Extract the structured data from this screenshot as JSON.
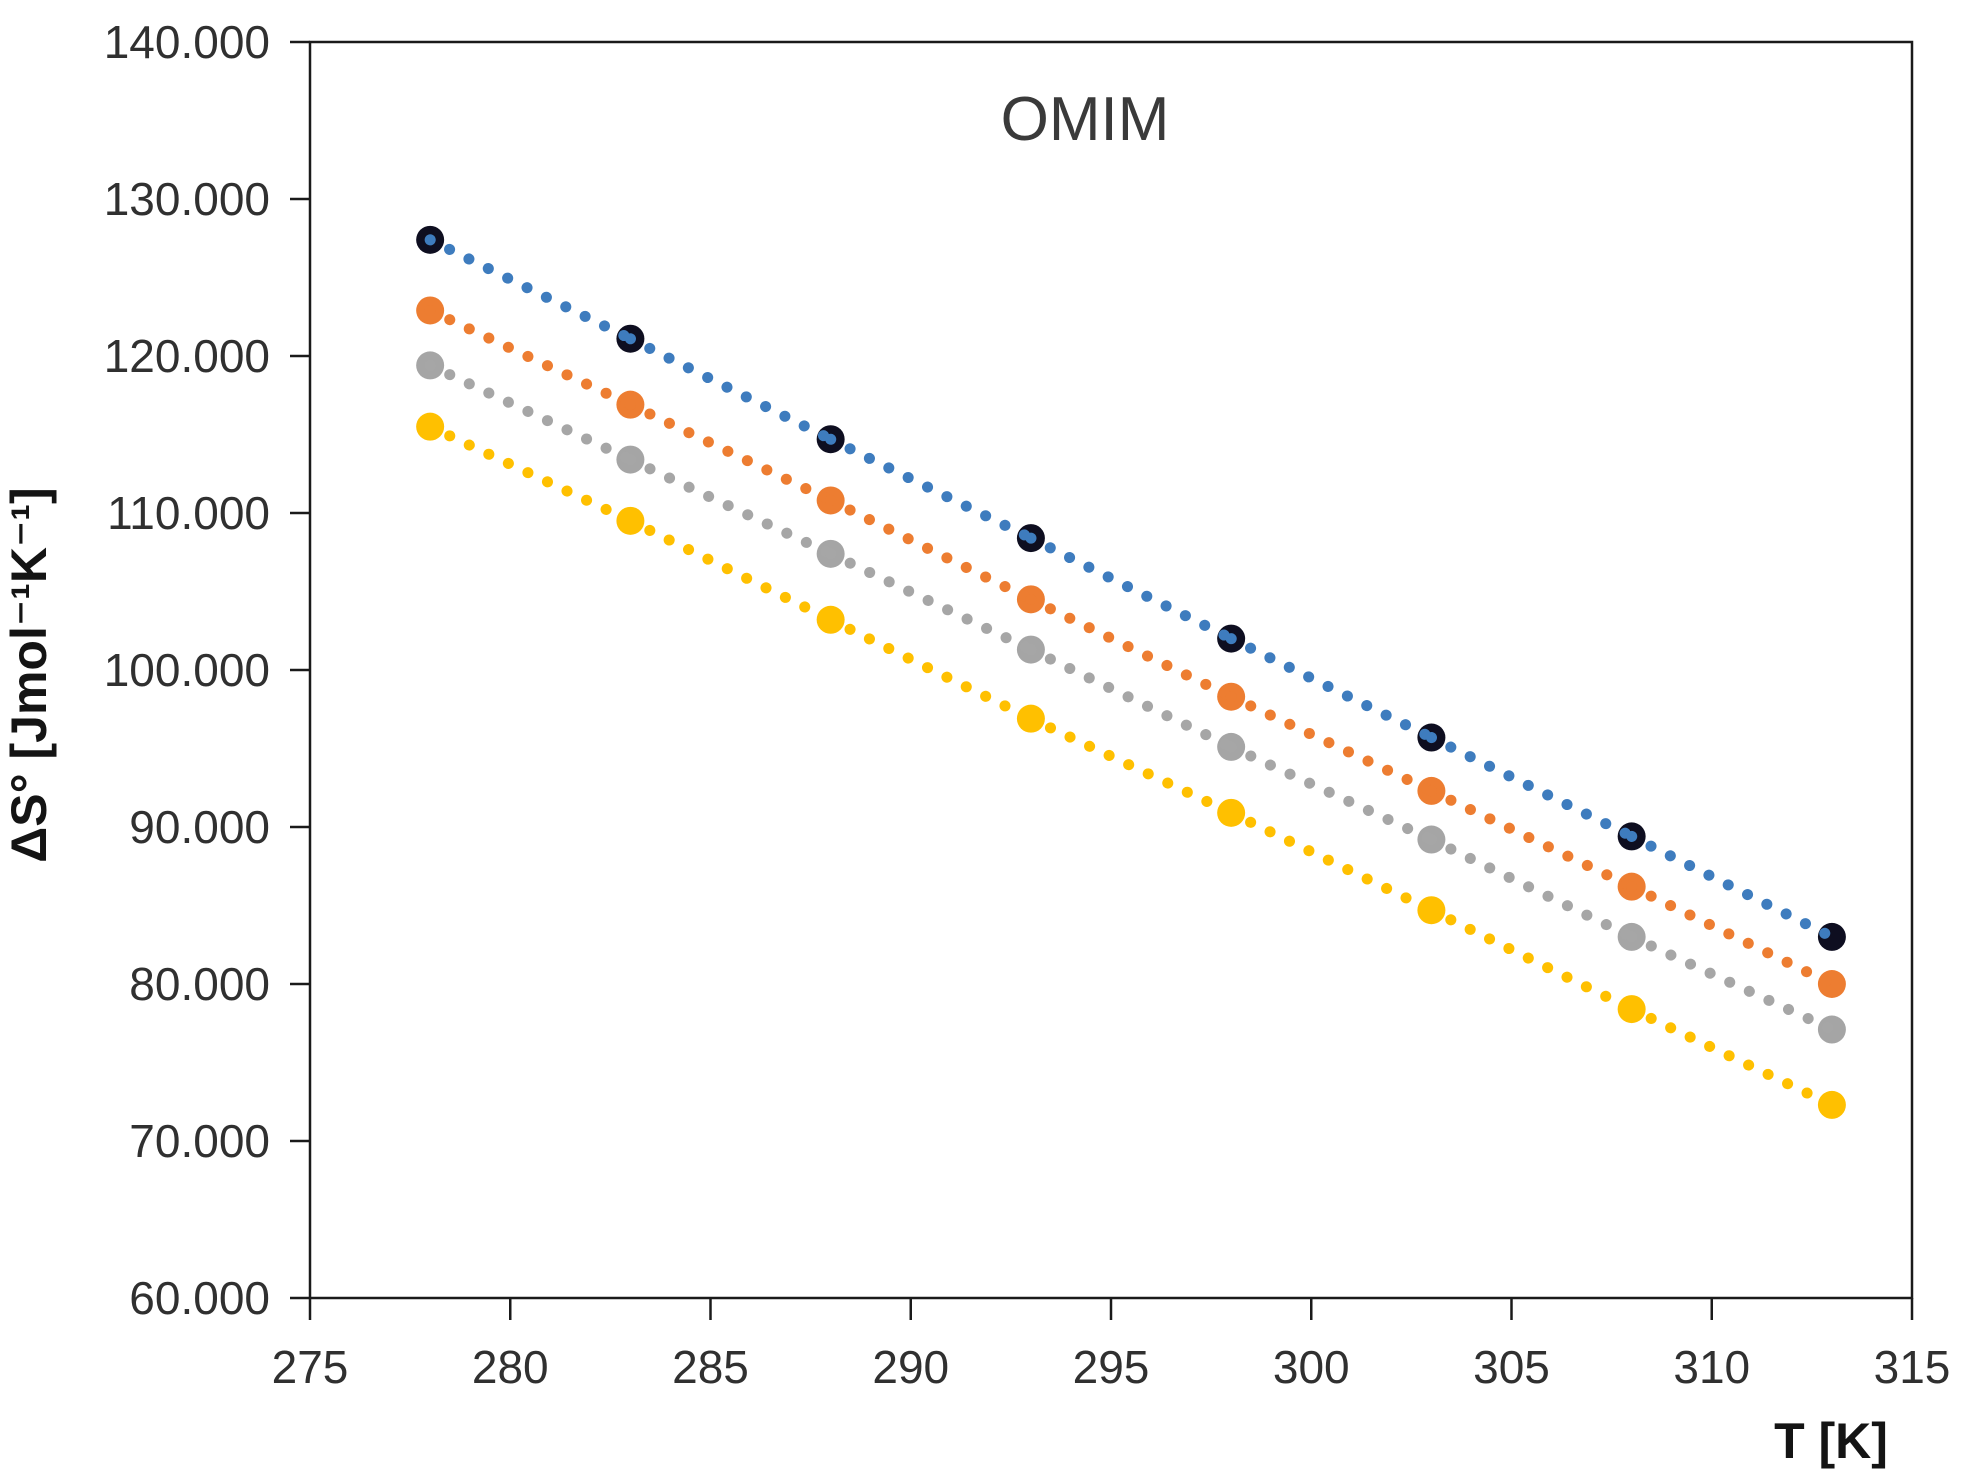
{
  "page": {
    "background_color": "#ffffff"
  },
  "chart_data": {
    "type": "scatter",
    "title": "OMIM",
    "xlabel": "T [K]",
    "ylabel": "ΔS° [Jmol⁻¹K⁻¹]",
    "grid": false,
    "legend": false,
    "trendline_style": "dotted",
    "axis_color": "#1a1a1a",
    "tick_text_color": "#303030",
    "x_axis": {
      "min": 275,
      "max": 315,
      "tick_values": [
        275,
        280,
        285,
        290,
        295,
        300,
        305,
        310,
        315
      ],
      "tick_labels": [
        "275",
        "280",
        "285",
        "290",
        "295",
        "300",
        "305",
        "310",
        "315"
      ]
    },
    "y_axis": {
      "min": 60000,
      "max": 140000,
      "tick_values": [
        60000,
        70000,
        80000,
        90000,
        100000,
        110000,
        120000,
        130000,
        140000
      ],
      "tick_labels": [
        "60.000",
        "70.000",
        "80.000",
        "90.000",
        "100.000",
        "110.000",
        "120.000",
        "130.000",
        "140.000"
      ]
    },
    "x": [
      278,
      283,
      288,
      293,
      298,
      303,
      308,
      313
    ],
    "series": [
      {
        "name": "series-1-dark-blue",
        "marker_color": "#0e0e20",
        "line_color": "#3e7cbe",
        "values": [
          127400,
          121100,
          114700,
          108400,
          102000,
          95700,
          89400,
          83000
        ]
      },
      {
        "name": "series-2-orange",
        "marker_color": "#ed7d31",
        "line_color": "#ed7d31",
        "values": [
          122900,
          116900,
          110800,
          104500,
          98300,
          92300,
          86200,
          80000
        ]
      },
      {
        "name": "series-3-gray",
        "marker_color": "#a5a5a5",
        "line_color": "#a6a6a6",
        "values": [
          119400,
          113400,
          107400,
          101300,
          95100,
          89200,
          83000,
          77100
        ]
      },
      {
        "name": "series-4-yellow",
        "marker_color": "#ffc000",
        "line_color": "#ffc000",
        "values": [
          115500,
          109500,
          103200,
          96900,
          90900,
          84700,
          78400,
          72300
        ]
      }
    ]
  }
}
